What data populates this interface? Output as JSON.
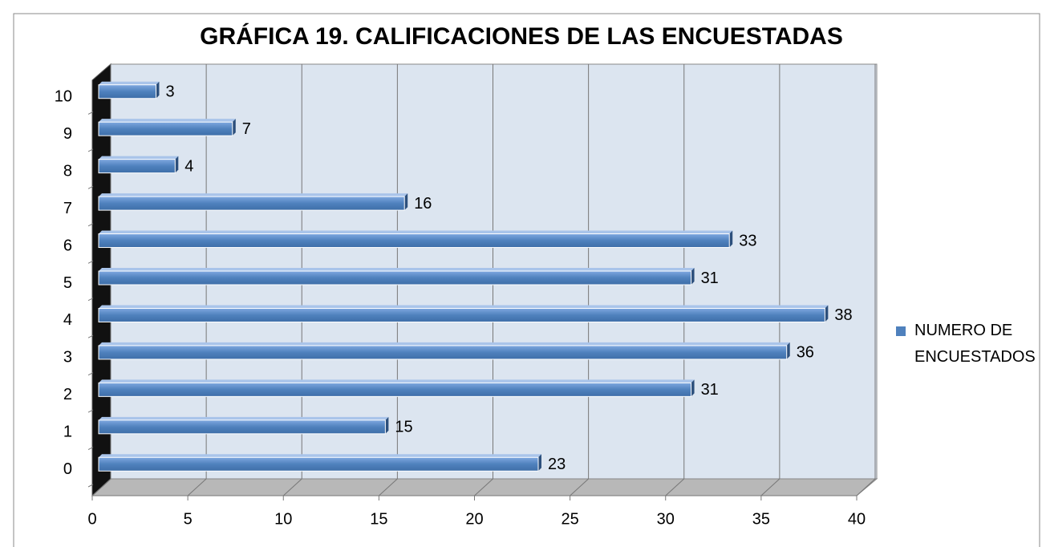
{
  "chart_data": {
    "type": "bar",
    "orientation": "horizontal",
    "title": "GRÁFICA 19. CALIFICACIONES DE LAS ENCUESTADAS",
    "categories": [
      "0",
      "1",
      "2",
      "3",
      "4",
      "5",
      "6",
      "7",
      "8",
      "9",
      "10"
    ],
    "series": [
      {
        "name": "NUMERO DE ENCUESTADOS",
        "color": "#4f81bd",
        "values": [
          23,
          15,
          31,
          36,
          38,
          31,
          33,
          16,
          4,
          7,
          3
        ]
      }
    ],
    "xlim": [
      0,
      40
    ],
    "xticks": [
      0,
      5,
      10,
      15,
      20,
      25,
      30,
      35,
      40
    ],
    "grid": true,
    "legend": "right"
  }
}
